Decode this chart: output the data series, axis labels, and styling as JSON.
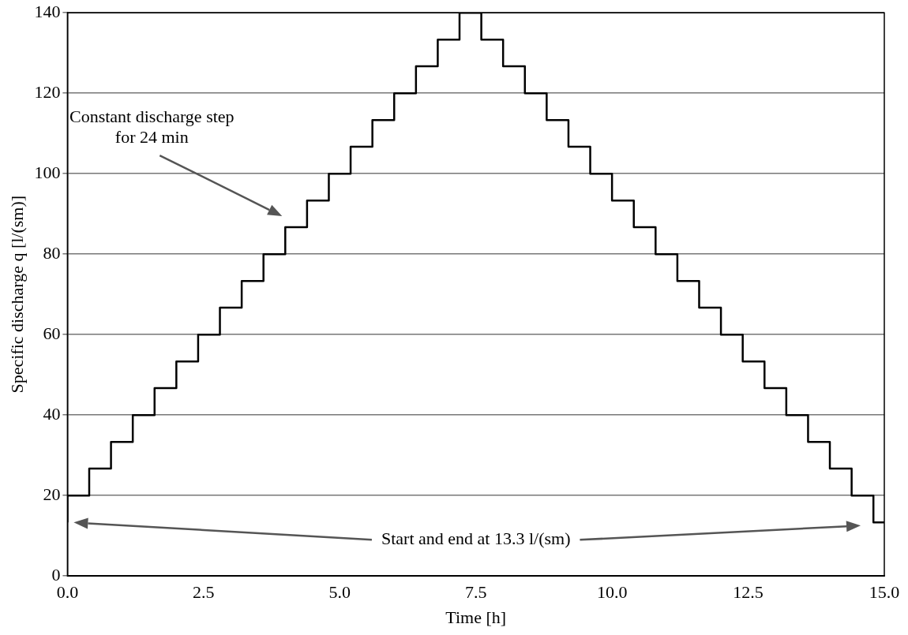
{
  "chart_data": {
    "type": "step",
    "xlabel": "Time [h]",
    "ylabel": "Specific discharge q [l/(sm)]",
    "x": [
      0,
      0,
      0.4,
      0.8,
      1.2,
      1.6,
      2.0,
      2.4,
      2.8,
      3.2,
      3.6,
      4.0,
      4.4,
      4.8,
      5.2,
      5.6,
      6.0,
      6.4,
      6.8,
      7.2,
      7.6,
      8.0,
      8.4,
      8.8,
      9.2,
      9.6,
      10.0,
      10.4,
      10.8,
      11.2,
      11.6,
      12.0,
      12.4,
      12.8,
      13.2,
      13.6,
      14.0,
      14.4,
      14.8,
      15.0
    ],
    "series": [
      {
        "color": "#000000",
        "values": [
          13.3,
          20,
          26.7,
          33.3,
          40,
          46.7,
          53.3,
          60,
          66.7,
          73.3,
          80,
          86.7,
          93.3,
          100,
          106.7,
          113.3,
          120,
          126.7,
          133.3,
          140,
          133.3,
          126.7,
          120,
          113.3,
          106.7,
          100,
          93.3,
          86.7,
          80,
          73.3,
          66.7,
          60,
          53.3,
          46.7,
          40,
          33.3,
          26.7,
          20,
          13.3,
          13.3
        ]
      }
    ],
    "xlim": [
      0,
      15
    ],
    "ylim": [
      0,
      140
    ],
    "xticks": [
      {
        "value": 0,
        "label": "0.0"
      },
      {
        "value": 2.5,
        "label": "2.5"
      },
      {
        "value": 5,
        "label": "5.0"
      },
      {
        "value": 7.5,
        "label": "7.5"
      },
      {
        "value": 10,
        "label": "10.0"
      },
      {
        "value": 12.5,
        "label": "12.5"
      },
      {
        "value": 15,
        "label": "15.0"
      }
    ],
    "yticks": [
      0,
      20,
      40,
      60,
      80,
      100,
      120,
      140
    ],
    "grid": "y",
    "legend": false,
    "marker": "none",
    "line_style": "solid",
    "annotations": [
      "Constant discharge step\nfor 24 min",
      "Start and end at 13.3 l/(sm)"
    ]
  }
}
